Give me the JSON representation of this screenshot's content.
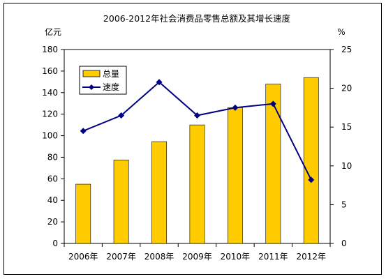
{
  "chart_data": {
    "type": "bar+line",
    "title": "2006-2012年社会消费品零售总额及其增长速度",
    "categories": [
      "2006年",
      "2007年",
      "2008年",
      "2009年",
      "2010年",
      "2011年",
      "2012年"
    ],
    "left_axis": {
      "unit": "亿元",
      "ylim": [
        0,
        180
      ],
      "ticks": [
        0,
        20,
        40,
        60,
        80,
        100,
        120,
        140,
        160,
        180
      ]
    },
    "right_axis": {
      "unit": "%",
      "ylim": [
        0,
        25
      ],
      "ticks": [
        0,
        5,
        10,
        15,
        20,
        25
      ]
    },
    "series": [
      {
        "name": "总量",
        "type": "bar",
        "axis": "left",
        "color": "#FFCC00",
        "values": [
          55,
          77.5,
          94.5,
          110,
          126,
          148,
          154
        ]
      },
      {
        "name": "速度",
        "type": "line",
        "axis": "right",
        "color": "#000080",
        "values": [
          14.5,
          16.5,
          20.8,
          16.5,
          17.5,
          18,
          8.2
        ]
      }
    ],
    "legend_position": "top-left",
    "grid": false
  }
}
